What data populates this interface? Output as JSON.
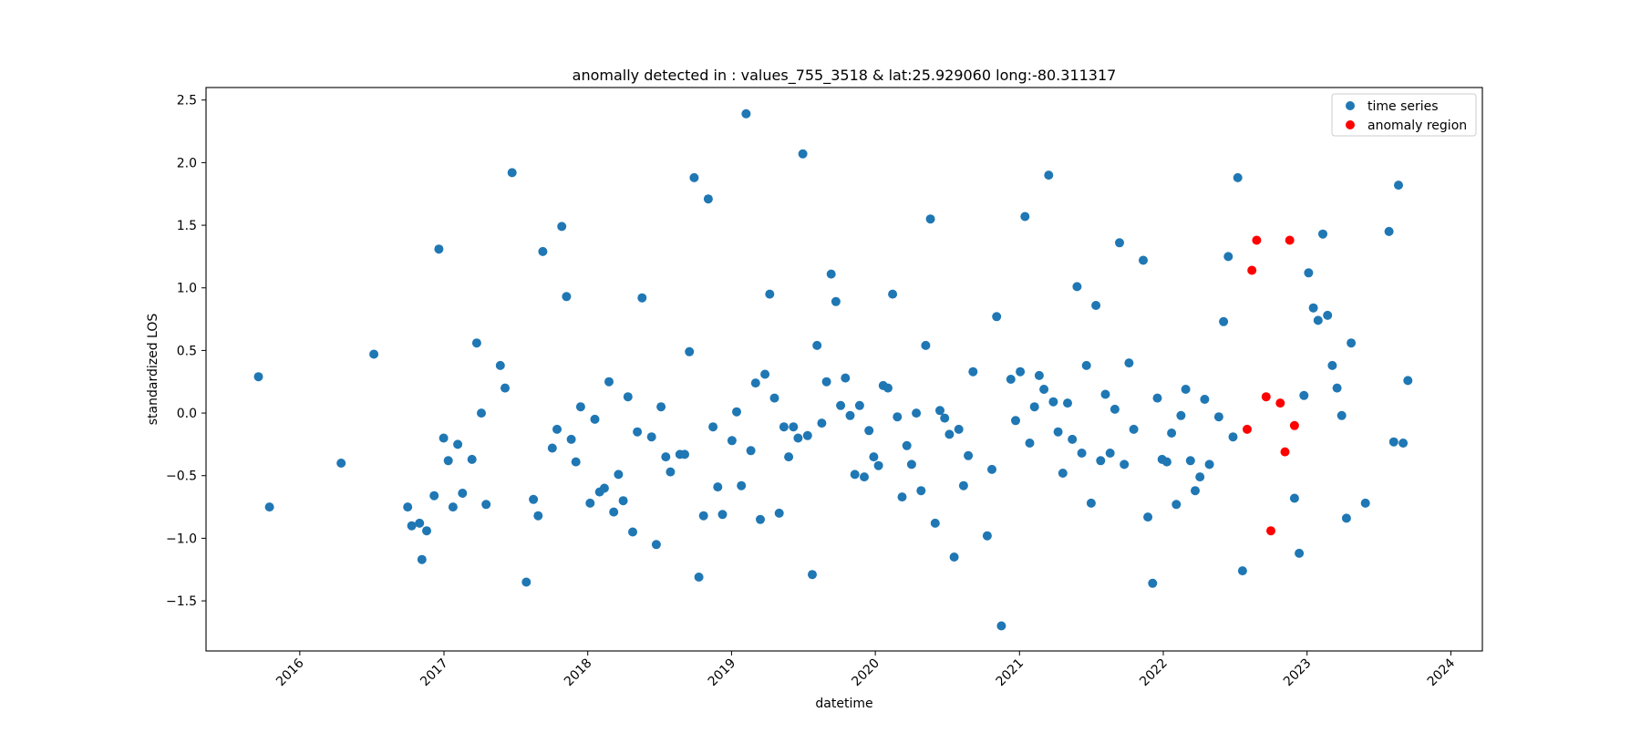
{
  "chart_data": {
    "type": "scatter",
    "title": "anomally detected in : values_755_3518 & lat:25.929060 long:-80.311317",
    "xlabel": "datetime",
    "ylabel": "standardized LOS",
    "xlim": [
      "2015-05-08",
      "2024-03-21"
    ],
    "ylim": [
      -1.9,
      2.6
    ],
    "grid": false,
    "legend_position": "top-right",
    "x_ticks": [
      "2016",
      "2017",
      "2018",
      "2019",
      "2020",
      "2021",
      "2022",
      "2023",
      "2024"
    ],
    "x_tick_dates": [
      "2016-01-01",
      "2017-01-01",
      "2018-01-01",
      "2019-01-01",
      "2020-01-01",
      "2021-01-01",
      "2022-01-01",
      "2023-01-01",
      "2024-01-01"
    ],
    "y_ticks": [
      "−1.5",
      "−1.0",
      "−0.5",
      "0.0",
      "0.5",
      "1.0",
      "1.5",
      "2.0",
      "2.5"
    ],
    "y_tick_values": [
      -1.5,
      -1.0,
      -0.5,
      0.0,
      0.5,
      1.0,
      1.5,
      2.0,
      2.5
    ],
    "series": [
      {
        "name": "time series",
        "color": "#1f77b4",
        "points": [
          [
            "2015-09-18",
            0.29
          ],
          [
            "2015-10-16",
            -0.75
          ],
          [
            "2016-04-15",
            -0.4
          ],
          [
            "2016-07-07",
            0.47
          ],
          [
            "2016-10-01",
            -0.75
          ],
          [
            "2016-10-11",
            -0.9
          ],
          [
            "2016-10-31",
            -0.88
          ],
          [
            "2016-11-06",
            -1.17
          ],
          [
            "2016-11-18",
            -0.94
          ],
          [
            "2016-12-07",
            -0.66
          ],
          [
            "2016-12-19",
            1.31
          ],
          [
            "2016-12-31",
            -0.2
          ],
          [
            "2017-01-12",
            -0.38
          ],
          [
            "2017-01-24",
            -0.75
          ],
          [
            "2017-02-05",
            -0.25
          ],
          [
            "2017-02-17",
            -0.64
          ],
          [
            "2017-03-13",
            -0.37
          ],
          [
            "2017-03-25",
            0.56
          ],
          [
            "2017-04-06",
            0.0
          ],
          [
            "2017-04-18",
            -0.73
          ],
          [
            "2017-05-24",
            0.38
          ],
          [
            "2017-06-05",
            0.2
          ],
          [
            "2017-06-23",
            1.92
          ],
          [
            "2017-07-29",
            -1.35
          ],
          [
            "2017-08-16",
            -0.69
          ],
          [
            "2017-08-28",
            -0.82
          ],
          [
            "2017-09-09",
            1.29
          ],
          [
            "2017-10-03",
            -0.28
          ],
          [
            "2017-10-15",
            -0.13
          ],
          [
            "2017-10-27",
            1.49
          ],
          [
            "2017-11-08",
            0.93
          ],
          [
            "2017-11-20",
            -0.21
          ],
          [
            "2017-12-02",
            -0.39
          ],
          [
            "2017-12-14",
            0.05
          ],
          [
            "2018-01-07",
            -0.72
          ],
          [
            "2018-01-19",
            -0.05
          ],
          [
            "2018-01-31",
            -0.63
          ],
          [
            "2018-02-12",
            -0.6
          ],
          [
            "2018-02-24",
            0.25
          ],
          [
            "2018-03-08",
            -0.79
          ],
          [
            "2018-03-20",
            -0.49
          ],
          [
            "2018-04-01",
            -0.7
          ],
          [
            "2018-04-13",
            0.13
          ],
          [
            "2018-04-25",
            -0.95
          ],
          [
            "2018-05-07",
            -0.15
          ],
          [
            "2018-05-19",
            0.92
          ],
          [
            "2018-06-12",
            -0.19
          ],
          [
            "2018-06-24",
            -1.05
          ],
          [
            "2018-07-06",
            0.05
          ],
          [
            "2018-07-18",
            -0.35
          ],
          [
            "2018-07-30",
            -0.47
          ],
          [
            "2018-08-23",
            -0.33
          ],
          [
            "2018-09-04",
            -0.33
          ],
          [
            "2018-09-16",
            0.49
          ],
          [
            "2018-09-28",
            1.88
          ],
          [
            "2018-10-10",
            -1.31
          ],
          [
            "2018-10-22",
            -0.82
          ],
          [
            "2018-11-03",
            1.71
          ],
          [
            "2018-11-15",
            -0.11
          ],
          [
            "2018-11-27",
            -0.59
          ],
          [
            "2018-12-09",
            -0.81
          ],
          [
            "2019-01-02",
            -0.22
          ],
          [
            "2019-01-14",
            0.01
          ],
          [
            "2019-01-26",
            -0.58
          ],
          [
            "2019-02-07",
            2.39
          ],
          [
            "2019-02-19",
            -0.3
          ],
          [
            "2019-03-03",
            0.24
          ],
          [
            "2019-03-15",
            -0.85
          ],
          [
            "2019-03-27",
            0.31
          ],
          [
            "2019-04-08",
            0.95
          ],
          [
            "2019-04-20",
            0.12
          ],
          [
            "2019-05-02",
            -0.8
          ],
          [
            "2019-05-14",
            -0.11
          ],
          [
            "2019-05-26",
            -0.35
          ],
          [
            "2019-06-07",
            -0.11
          ],
          [
            "2019-06-19",
            -0.2
          ],
          [
            "2019-07-01",
            2.07
          ],
          [
            "2019-07-13",
            -0.18
          ],
          [
            "2019-07-25",
            -1.29
          ],
          [
            "2019-08-06",
            0.54
          ],
          [
            "2019-08-18",
            -0.08
          ],
          [
            "2019-08-30",
            0.25
          ],
          [
            "2019-09-11",
            1.11
          ],
          [
            "2019-09-23",
            0.89
          ],
          [
            "2019-10-05",
            0.06
          ],
          [
            "2019-10-17",
            0.28
          ],
          [
            "2019-10-29",
            -0.02
          ],
          [
            "2019-11-10",
            -0.49
          ],
          [
            "2019-11-22",
            0.06
          ],
          [
            "2019-12-04",
            -0.51
          ],
          [
            "2019-12-16",
            -0.14
          ],
          [
            "2019-12-28",
            -0.35
          ],
          [
            "2020-01-09",
            -0.42
          ],
          [
            "2020-01-21",
            0.22
          ],
          [
            "2020-02-02",
            0.2
          ],
          [
            "2020-02-14",
            0.95
          ],
          [
            "2020-02-26",
            -0.03
          ],
          [
            "2020-03-09",
            -0.67
          ],
          [
            "2020-03-21",
            -0.26
          ],
          [
            "2020-04-02",
            -0.41
          ],
          [
            "2020-04-14",
            0.0
          ],
          [
            "2020-04-26",
            -0.62
          ],
          [
            "2020-05-08",
            0.54
          ],
          [
            "2020-05-20",
            1.55
          ],
          [
            "2020-06-01",
            -0.88
          ],
          [
            "2020-06-13",
            0.02
          ],
          [
            "2020-06-25",
            -0.04
          ],
          [
            "2020-07-07",
            -0.17
          ],
          [
            "2020-07-19",
            -1.15
          ],
          [
            "2020-07-31",
            -0.13
          ],
          [
            "2020-08-12",
            -0.58
          ],
          [
            "2020-08-24",
            -0.34
          ],
          [
            "2020-09-05",
            0.33
          ],
          [
            "2020-10-11",
            -0.98
          ],
          [
            "2020-10-23",
            -0.45
          ],
          [
            "2020-11-04",
            0.77
          ],
          [
            "2020-11-16",
            -1.7
          ],
          [
            "2020-12-10",
            0.27
          ],
          [
            "2020-12-22",
            -0.06
          ],
          [
            "2021-01-03",
            0.33
          ],
          [
            "2021-01-15",
            1.57
          ],
          [
            "2021-01-27",
            -0.24
          ],
          [
            "2021-02-08",
            0.05
          ],
          [
            "2021-02-20",
            0.3
          ],
          [
            "2021-03-04",
            0.19
          ],
          [
            "2021-03-16",
            1.9
          ],
          [
            "2021-03-28",
            0.09
          ],
          [
            "2021-04-09",
            -0.15
          ],
          [
            "2021-04-21",
            -0.48
          ],
          [
            "2021-05-03",
            0.08
          ],
          [
            "2021-05-15",
            -0.21
          ],
          [
            "2021-05-27",
            1.01
          ],
          [
            "2021-06-08",
            -0.32
          ],
          [
            "2021-06-20",
            0.38
          ],
          [
            "2021-07-02",
            -0.72
          ],
          [
            "2021-07-14",
            0.86
          ],
          [
            "2021-07-26",
            -0.38
          ],
          [
            "2021-08-07",
            0.15
          ],
          [
            "2021-08-19",
            -0.32
          ],
          [
            "2021-08-31",
            0.03
          ],
          [
            "2021-09-12",
            1.36
          ],
          [
            "2021-09-24",
            -0.41
          ],
          [
            "2021-10-06",
            0.4
          ],
          [
            "2021-10-18",
            -0.13
          ],
          [
            "2021-11-11",
            1.22
          ],
          [
            "2021-11-23",
            -0.83
          ],
          [
            "2021-12-05",
            -1.36
          ],
          [
            "2021-12-17",
            0.12
          ],
          [
            "2021-12-29",
            -0.37
          ],
          [
            "2022-01-10",
            -0.39
          ],
          [
            "2022-01-22",
            -0.16
          ],
          [
            "2022-02-03",
            -0.73
          ],
          [
            "2022-02-15",
            -0.02
          ],
          [
            "2022-02-27",
            0.19
          ],
          [
            "2022-03-11",
            -0.38
          ],
          [
            "2022-03-23",
            -0.62
          ],
          [
            "2022-04-04",
            -0.51
          ],
          [
            "2022-04-16",
            0.11
          ],
          [
            "2022-04-28",
            -0.41
          ],
          [
            "2022-05-22",
            -0.03
          ],
          [
            "2022-06-03",
            0.73
          ],
          [
            "2022-06-15",
            1.25
          ],
          [
            "2022-06-27",
            -0.19
          ],
          [
            "2022-07-09",
            1.88
          ],
          [
            "2022-07-21",
            -1.26
          ],
          [
            "2022-11-30",
            -0.68
          ],
          [
            "2022-12-12",
            -1.12
          ],
          [
            "2022-12-24",
            0.14
          ],
          [
            "2023-01-05",
            1.12
          ],
          [
            "2023-01-17",
            0.84
          ],
          [
            "2023-01-29",
            0.74
          ],
          [
            "2023-02-10",
            1.43
          ],
          [
            "2023-02-22",
            0.78
          ],
          [
            "2023-03-06",
            0.38
          ],
          [
            "2023-03-18",
            0.2
          ],
          [
            "2023-03-30",
            -0.02
          ],
          [
            "2023-04-11",
            -0.84
          ],
          [
            "2023-04-23",
            0.56
          ],
          [
            "2023-05-29",
            -0.72
          ],
          [
            "2023-07-28",
            1.45
          ],
          [
            "2023-08-09",
            -0.23
          ],
          [
            "2023-08-21",
            1.82
          ],
          [
            "2023-09-02",
            -0.24
          ],
          [
            "2023-09-14",
            0.26
          ]
        ]
      },
      {
        "name": "anomaly region",
        "color": "#ff0000",
        "points": [
          [
            "2022-08-02",
            -0.13
          ],
          [
            "2022-08-14",
            1.14
          ],
          [
            "2022-08-26",
            1.38
          ],
          [
            "2022-09-19",
            0.13
          ],
          [
            "2022-10-01",
            -0.94
          ],
          [
            "2022-10-25",
            0.08
          ],
          [
            "2022-11-06",
            -0.31
          ],
          [
            "2022-11-18",
            1.38
          ],
          [
            "2022-11-30",
            -0.1
          ]
        ]
      }
    ]
  }
}
